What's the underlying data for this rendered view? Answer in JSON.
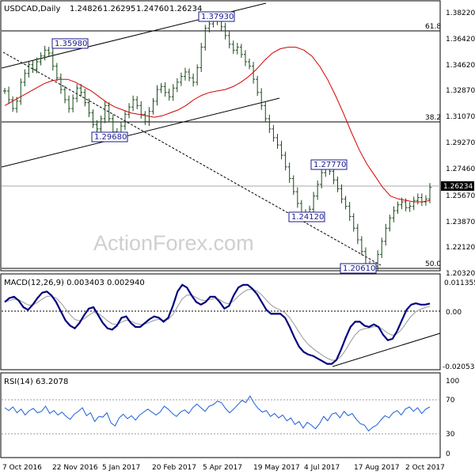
{
  "chart_data": {
    "type": "candlestick",
    "title": "USDCAD,Daily",
    "ohlc_readout": [
      "1.24826",
      "1.26295",
      "1.24760",
      "1.26234"
    ],
    "watermark": "ActionForex.com",
    "x_tick_labels": [
      "7 Oct 2016",
      "22 Nov 2016",
      "5 Jan 2017",
      "20 Feb 2017",
      "5 Apr 2017",
      "19 May 2017",
      "4 Jul 2017",
      "17 Aug 2017",
      "2 Oct 2017"
    ],
    "price_panel": {
      "y_ticks": [
        "1.38220",
        "1.36420",
        "1.34620",
        "1.32870",
        "1.31070",
        "1.29270",
        "1.27460",
        "1.25670",
        "1.23870",
        "1.22120",
        "1.20320"
      ],
      "ylim": [
        1.2032,
        1.3822
      ],
      "current_price": "1.26234",
      "fib_levels": [
        {
          "label": "61.8",
          "value": 1.3635
        },
        {
          "label": "38.2",
          "value": 1.3083
        },
        {
          "label": "50.0",
          "value": 1.2059
        }
      ],
      "price_labels": [
        {
          "text": "1.37930",
          "value": 1.3793
        },
        {
          "text": "1.35980",
          "value": 1.3598
        },
        {
          "text": "1.29680",
          "value": 1.2968
        },
        {
          "text": "1.27770",
          "value": 1.2777
        },
        {
          "text": "1.24120",
          "value": 1.2412
        },
        {
          "text": "1.20610",
          "value": 1.2061
        }
      ],
      "series_close": [
        1.328,
        1.322,
        1.316,
        1.321,
        1.334,
        1.34,
        1.346,
        1.343,
        1.348,
        1.352,
        1.356,
        1.354,
        1.345,
        1.337,
        1.329,
        1.322,
        1.316,
        1.323,
        1.33,
        1.327,
        1.32,
        1.313,
        1.305,
        1.302,
        1.309,
        1.318,
        1.309,
        1.3,
        1.297,
        1.304,
        1.312,
        1.317,
        1.322,
        1.318,
        1.312,
        1.307,
        1.314,
        1.321,
        1.329,
        1.331,
        1.327,
        1.324,
        1.33,
        1.334,
        1.338,
        1.341,
        1.337,
        1.334,
        1.344,
        1.358,
        1.371,
        1.374,
        1.379,
        1.376,
        1.372,
        1.366,
        1.36,
        1.356,
        1.358,
        1.353,
        1.348,
        1.345,
        1.336,
        1.327,
        1.318,
        1.309,
        1.302,
        1.296,
        1.291,
        1.284,
        1.276,
        1.268,
        1.259,
        1.251,
        1.244,
        1.241,
        1.247,
        1.256,
        1.264,
        1.272,
        1.277,
        1.273,
        1.267,
        1.261,
        1.254,
        1.249,
        1.242,
        1.234,
        1.226,
        1.218,
        1.209,
        1.206,
        1.208,
        1.216,
        1.225,
        1.234,
        1.241,
        1.246,
        1.25,
        1.252,
        1.248,
        1.249,
        1.253,
        1.255,
        1.252,
        1.254,
        1.262
      ],
      "ma_values": [
        1.318,
        1.321,
        1.324,
        1.327,
        1.33,
        1.333,
        1.335,
        1.336,
        1.336,
        1.334,
        1.331,
        1.328,
        1.324,
        1.32,
        1.317,
        1.315,
        1.313,
        1.312,
        1.311,
        1.31,
        1.311,
        1.313,
        1.315,
        1.318,
        1.322,
        1.325,
        1.327,
        1.328,
        1.329,
        1.331,
        1.334,
        1.338,
        1.343,
        1.349,
        1.354,
        1.357,
        1.358,
        1.358,
        1.356,
        1.352,
        1.345,
        1.336,
        1.325,
        1.313,
        1.3,
        1.288,
        1.278,
        1.27,
        1.262,
        1.256,
        1.254,
        1.253,
        1.252,
        1.252,
        1.253
      ]
    },
    "macd_panel": {
      "label": "MACD(12,26,9) 0.003403 0.002940",
      "y_ticks": [
        "0.011355",
        "0.00",
        "-0.020531"
      ],
      "ylim": [
        -0.020531,
        0.011355
      ],
      "macd": [
        0.004,
        0.0055,
        0.006,
        0.0045,
        0.002,
        0.001,
        0.003,
        0.0055,
        0.0075,
        0.008,
        0.0065,
        0.004,
        0.0005,
        -0.003,
        -0.005,
        -0.006,
        -0.004,
        -0.001,
        0.0015,
        0.002,
        -0.001,
        -0.004,
        -0.006,
        -0.0065,
        -0.005,
        -0.002,
        -0.0015,
        -0.004,
        -0.0055,
        -0.0055,
        -0.004,
        -0.0025,
        -0.0015,
        -0.002,
        -0.0035,
        -0.002,
        0.0025,
        0.008,
        0.0105,
        0.0095,
        0.0065,
        0.004,
        0.003,
        0.004,
        0.006,
        0.006,
        0.004,
        0.0015,
        0.0025,
        0.0065,
        0.0095,
        0.0105,
        0.0105,
        0.009,
        0.007,
        0.004,
        0.001,
        -0.0005,
        -0.0005,
        -0.0005,
        -0.002,
        -0.0055,
        -0.0095,
        -0.013,
        -0.015,
        -0.016,
        -0.0165,
        -0.0175,
        -0.0185,
        -0.0195,
        -0.0195,
        -0.018,
        -0.014,
        -0.0095,
        -0.0055,
        -0.0035,
        -0.0035,
        -0.005,
        -0.0055,
        -0.0045,
        -0.0055,
        -0.0085,
        -0.0105,
        -0.01,
        -0.007,
        -0.003,
        0.001,
        0.003,
        0.0035,
        0.003,
        0.003,
        0.0034
      ]
    },
    "rsi_panel": {
      "label": "RSI(14) 63.2078",
      "y_ticks": [
        "100",
        "70",
        "30",
        "0"
      ],
      "ylim": [
        0,
        100
      ],
      "levels": [
        70,
        30
      ],
      "rsi": [
        62,
        58,
        63,
        55,
        60,
        52,
        58,
        61,
        55,
        57,
        64,
        54,
        58,
        52,
        56,
        50,
        46,
        53,
        57,
        62,
        51,
        55,
        43,
        50,
        49,
        55,
        41,
        37,
        48,
        53,
        47,
        51,
        45,
        52,
        56,
        60,
        56,
        52,
        56,
        64,
        60,
        54,
        50,
        56,
        59,
        54,
        62,
        67,
        62,
        57,
        64,
        66,
        71,
        69,
        61,
        55,
        60,
        66,
        72,
        69,
        78,
        68,
        61,
        56,
        58,
        50,
        54,
        48,
        52,
        44,
        48,
        39,
        43,
        34,
        42,
        38,
        33,
        40,
        50,
        44,
        53,
        55,
        48,
        57,
        51,
        54,
        46,
        40,
        38,
        30,
        35,
        38,
        45,
        51,
        48,
        55,
        58,
        52,
        60,
        63,
        57,
        62,
        54,
        60,
        63
      ]
    }
  }
}
